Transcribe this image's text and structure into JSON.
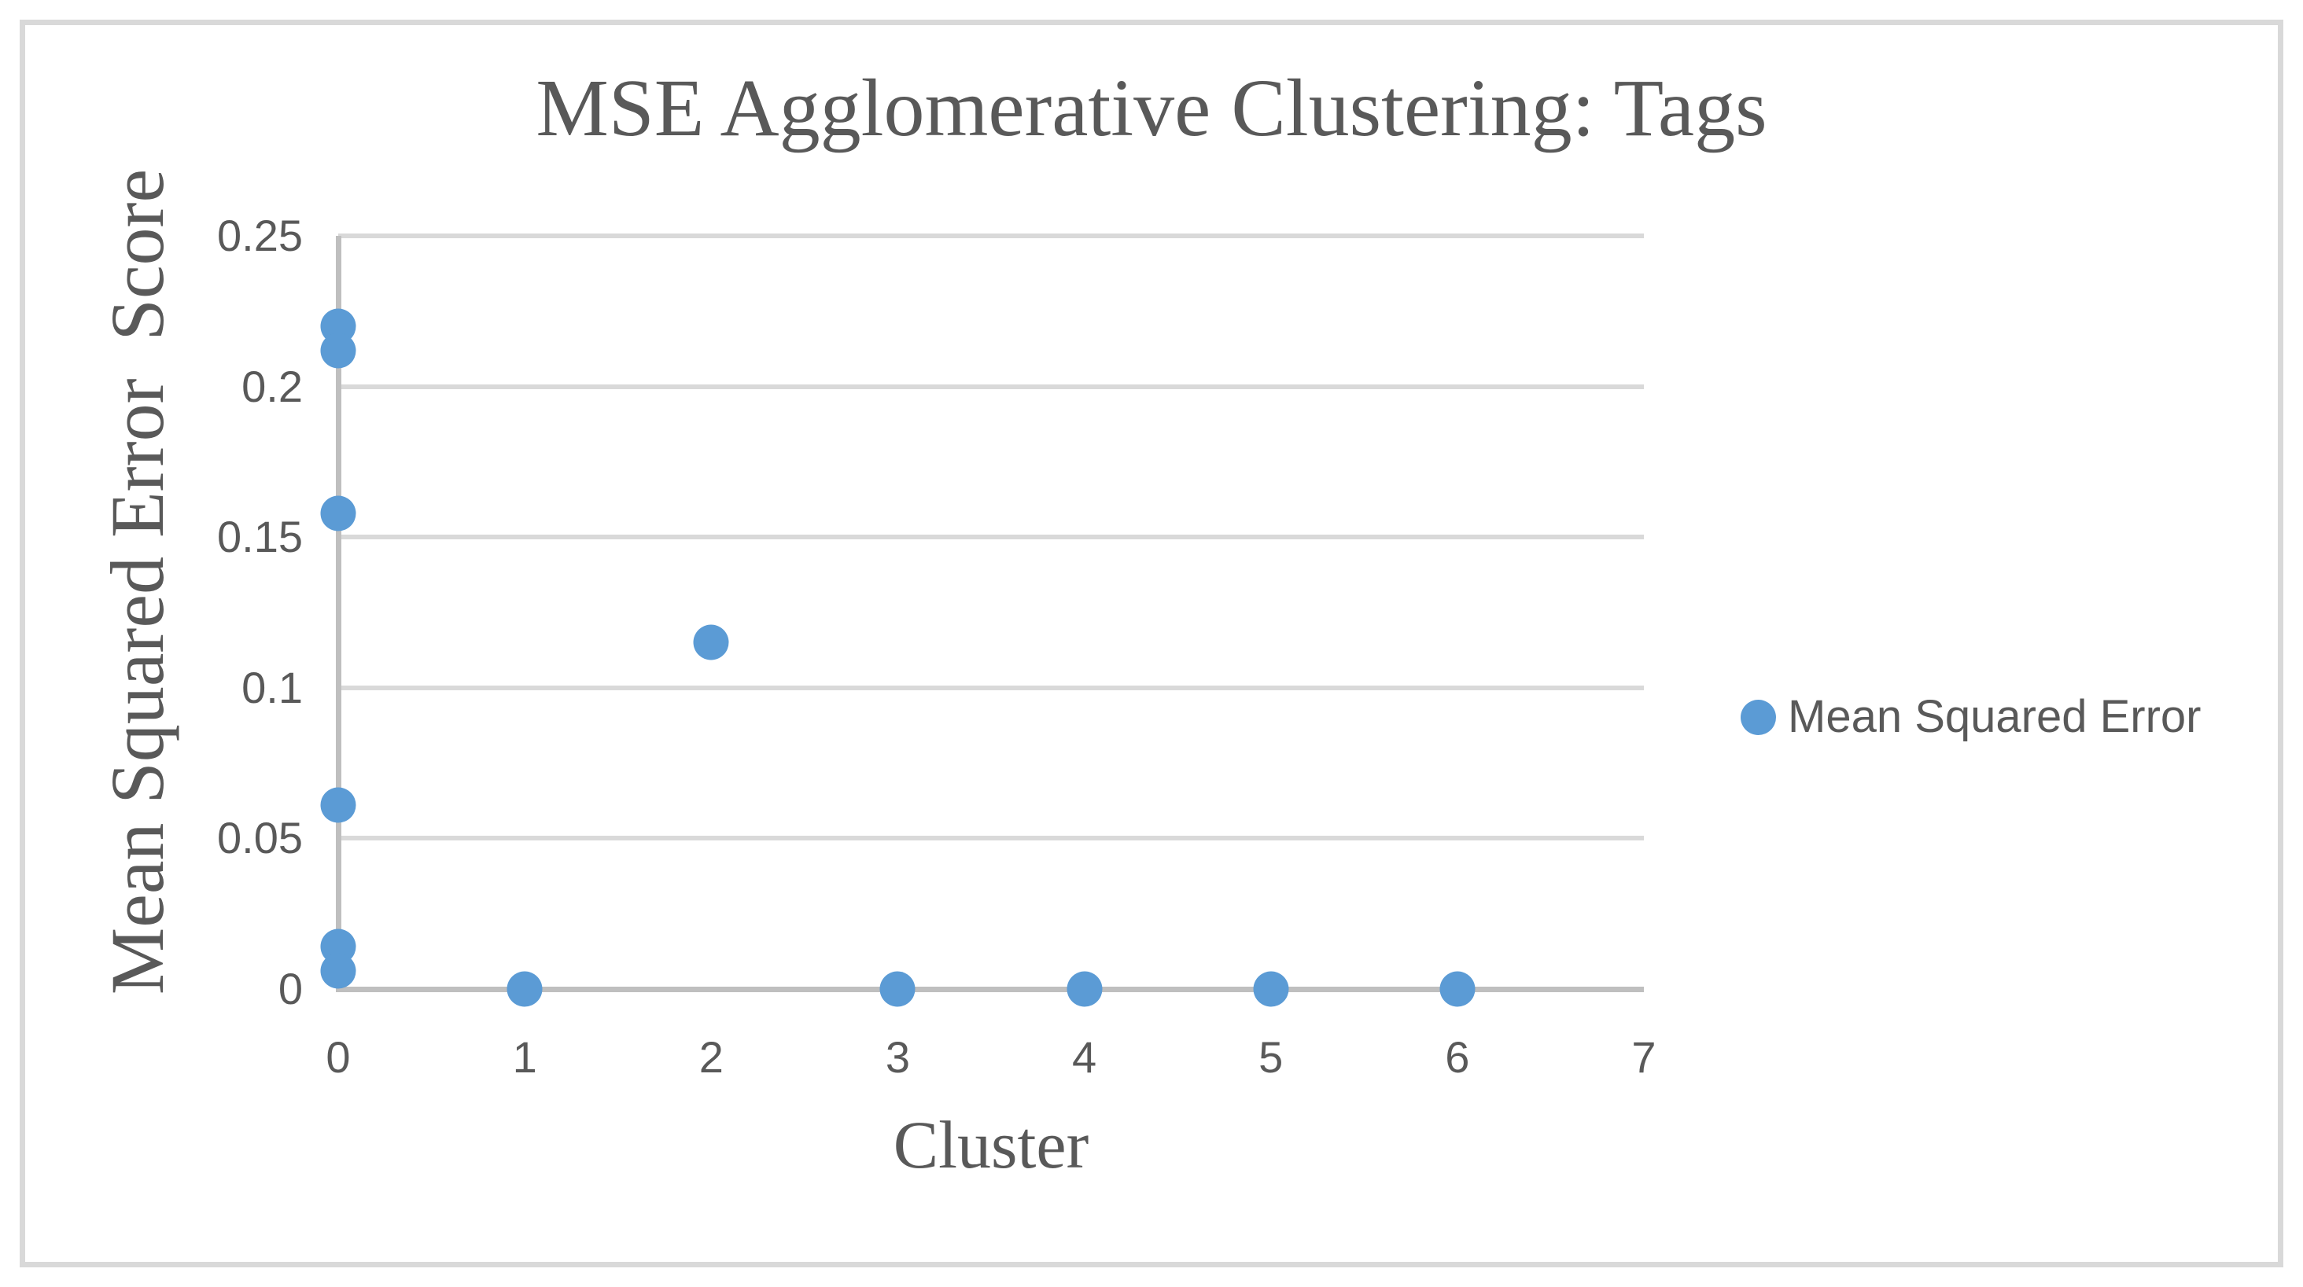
{
  "chart": {
    "title": "MSE Agglomerative Clustering: Tags",
    "x_axis_title": "Cluster",
    "y_axis_title": "Mean Squared Error  Score",
    "legend": {
      "label": "Mean Squared Error",
      "marker": "circle-icon"
    }
  },
  "chart_data": {
    "type": "scatter",
    "title": "MSE Agglomerative Clustering: Tags",
    "xlabel": "Cluster",
    "ylabel": "Mean Squared Error  Score",
    "xlim": [
      0,
      7
    ],
    "ylim": [
      0,
      0.25
    ],
    "x_ticks": [
      0,
      1,
      2,
      3,
      4,
      5,
      6,
      7
    ],
    "y_ticks": [
      {
        "value": 0,
        "label": "0"
      },
      {
        "value": 0.05,
        "label": "0.05"
      },
      {
        "value": 0.1,
        "label": "0.1"
      },
      {
        "value": 0.15,
        "label": "0.15"
      },
      {
        "value": 0.2,
        "label": "0.2"
      },
      {
        "value": 0.25,
        "label": "0.25"
      }
    ],
    "grid": "horizontal-only",
    "legend_position": "right-middle",
    "series": [
      {
        "name": "Mean Squared Error",
        "marker": "circle",
        "color": "#5B9BD5",
        "points": [
          {
            "x": 0,
            "y": 0.22
          },
          {
            "x": 0,
            "y": 0.212
          },
          {
            "x": 0,
            "y": 0.158
          },
          {
            "x": 0,
            "y": 0.061
          },
          {
            "x": 0,
            "y": 0.014
          },
          {
            "x": 0,
            "y": 0.006
          },
          {
            "x": 1,
            "y": 0
          },
          {
            "x": 2,
            "y": 0.115
          },
          {
            "x": 3,
            "y": 0
          },
          {
            "x": 4,
            "y": 0
          },
          {
            "x": 5,
            "y": 0
          },
          {
            "x": 6,
            "y": 0
          }
        ]
      }
    ],
    "colors": {
      "marker": "#5B9BD5",
      "gridline": "#D9D9D9",
      "axis_line": "#BFBFBF",
      "text": "#595959",
      "chart_border": "#D9D9D9",
      "background": "#FFFFFF"
    }
  }
}
